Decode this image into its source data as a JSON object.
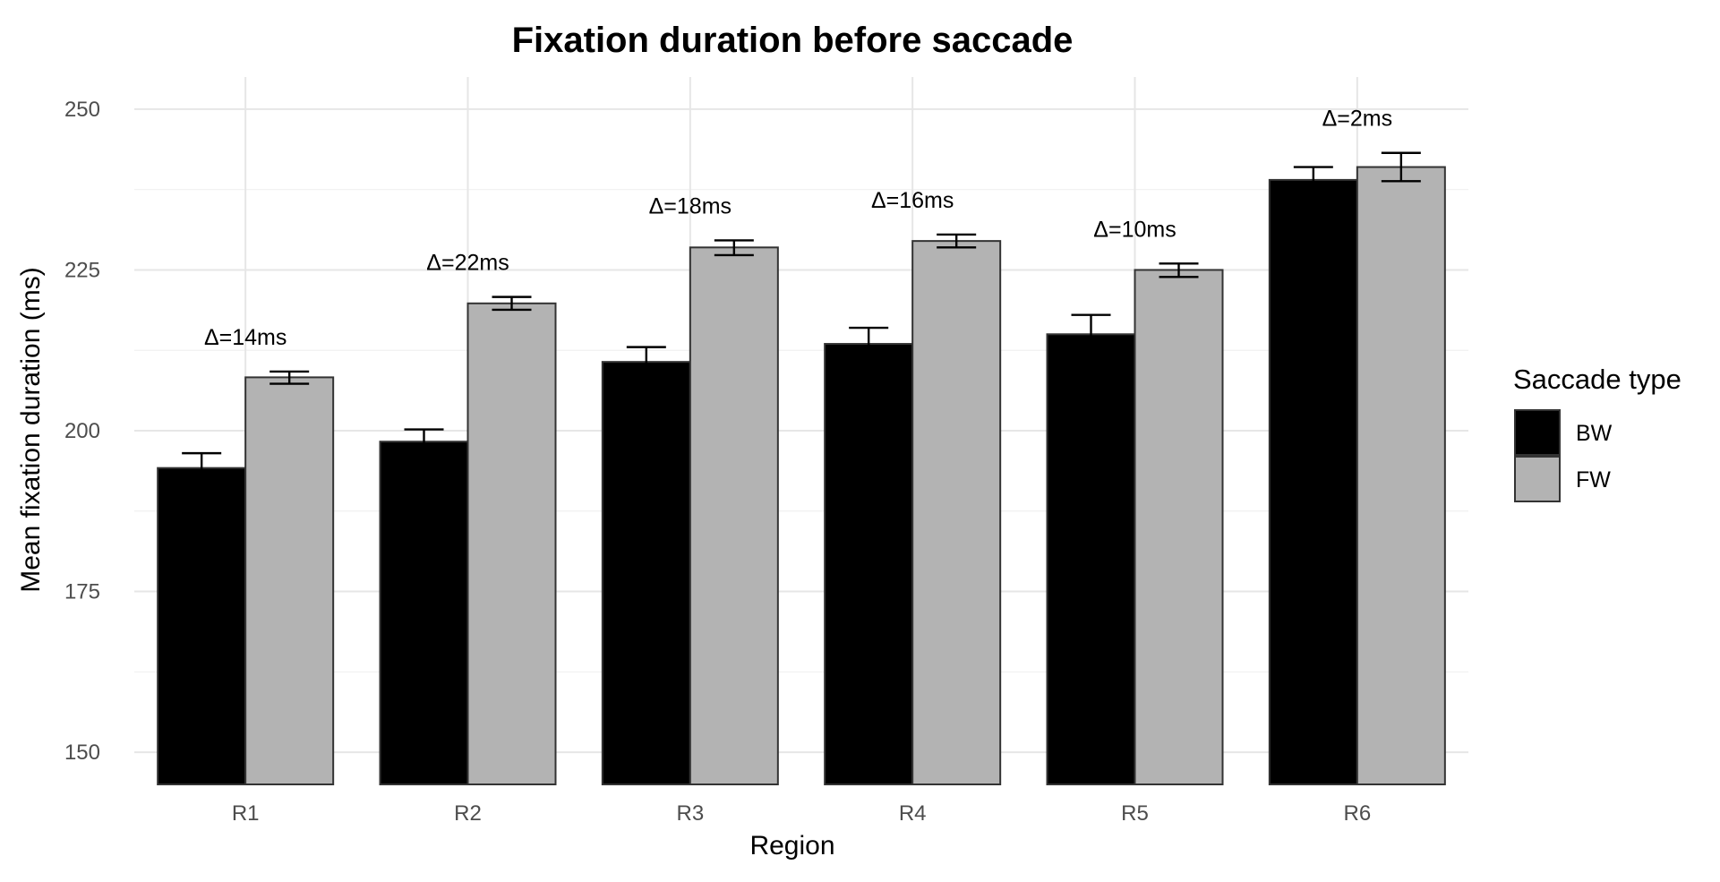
{
  "chart_data": {
    "type": "bar",
    "title": "Fixation duration before saccade",
    "xlabel": "Region",
    "ylabel": "Mean fixation duration (ms)",
    "categories": [
      "R1",
      "R2",
      "R3",
      "R4",
      "R5",
      "R6"
    ],
    "ylim": [
      145,
      255
    ],
    "yticks": [
      150,
      175,
      200,
      225,
      250
    ],
    "grid": true,
    "series": [
      {
        "name": "BW",
        "color": "#000000",
        "values": [
          194.2,
          198.3,
          210.7,
          213.5,
          215.0,
          239.0
        ],
        "error_low": [
          192.5,
          196.5,
          208.5,
          211.5,
          212.5,
          237.0
        ],
        "error_high": [
          196.5,
          200.2,
          213.0,
          216.0,
          218.0,
          241.0
        ]
      },
      {
        "name": "FW",
        "color": "#b3b3b3",
        "values": [
          208.3,
          219.8,
          228.5,
          229.5,
          225.0,
          241.0
        ],
        "error_low": [
          207.3,
          218.8,
          227.3,
          228.5,
          223.9,
          238.8
        ],
        "error_high": [
          209.2,
          220.8,
          229.6,
          230.5,
          226.0,
          243.2
        ]
      }
    ],
    "annotations": [
      "Δ=14ms",
      "Δ=22ms",
      "Δ=18ms",
      "Δ=16ms",
      "Δ=10ms",
      "Δ=2ms"
    ],
    "legend": {
      "title": "Saccade type",
      "position": "right"
    }
  }
}
